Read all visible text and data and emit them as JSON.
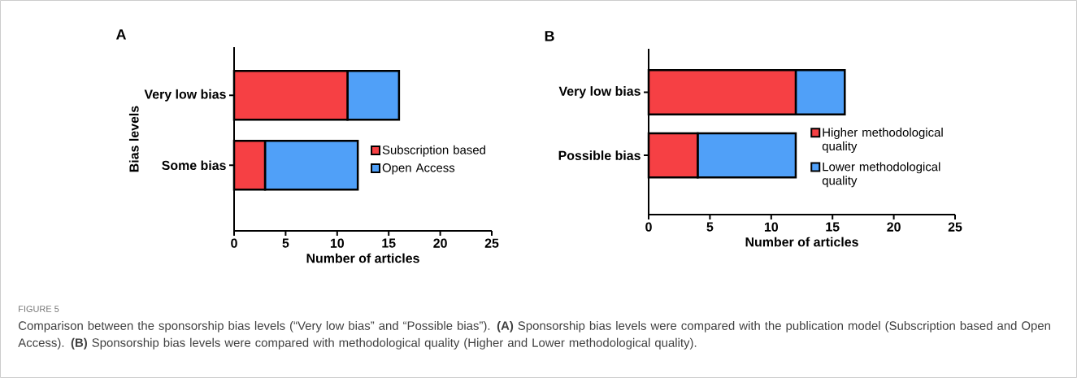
{
  "chart_data": [
    {
      "type": "bar",
      "orientation": "horizontal",
      "stacked": true,
      "title": "A",
      "xlabel": "Number of articles",
      "ylabel": "Bias levels",
      "categories": [
        "Very low bias",
        "Some bias"
      ],
      "series": [
        {
          "name": "Subscription based",
          "color": "#f64044",
          "values": [
            11,
            3
          ]
        },
        {
          "name": "Open Access",
          "color": "#50a0f8",
          "values": [
            5,
            9
          ]
        }
      ],
      "xlim": [
        0,
        25
      ],
      "xticks": [
        0,
        5,
        10,
        15,
        20,
        25
      ],
      "legend": "right",
      "grid": false,
      "annotations": [
        "FIGURE 5",
        "Comparison between the sponsorship bias levels (“Very low bias” and “Possible bias”). **(A)** Sponsorship bias levels were compared with the publication model (Subscription based and Open Access). **(B)** Sponsorship bias levels were compared with methodological quality (Higher and Lower methodological quality)."
      ]
    },
    {
      "type": "bar",
      "orientation": "horizontal",
      "stacked": true,
      "title": "B",
      "xlabel": "Number of articles",
      "categories": [
        "Very low bias",
        "Possible bias"
      ],
      "series": [
        {
          "name": "Higher methodological quality",
          "color": "#f64044",
          "values": [
            12,
            4
          ]
        },
        {
          "name": "Lower methodological quality",
          "color": "#50a0f8",
          "values": [
            4,
            8
          ]
        }
      ],
      "xlim": [
        0,
        25
      ],
      "xticks": [
        0,
        5,
        10,
        15,
        20,
        25
      ],
      "legend": "right",
      "grid": false
    }
  ]
}
